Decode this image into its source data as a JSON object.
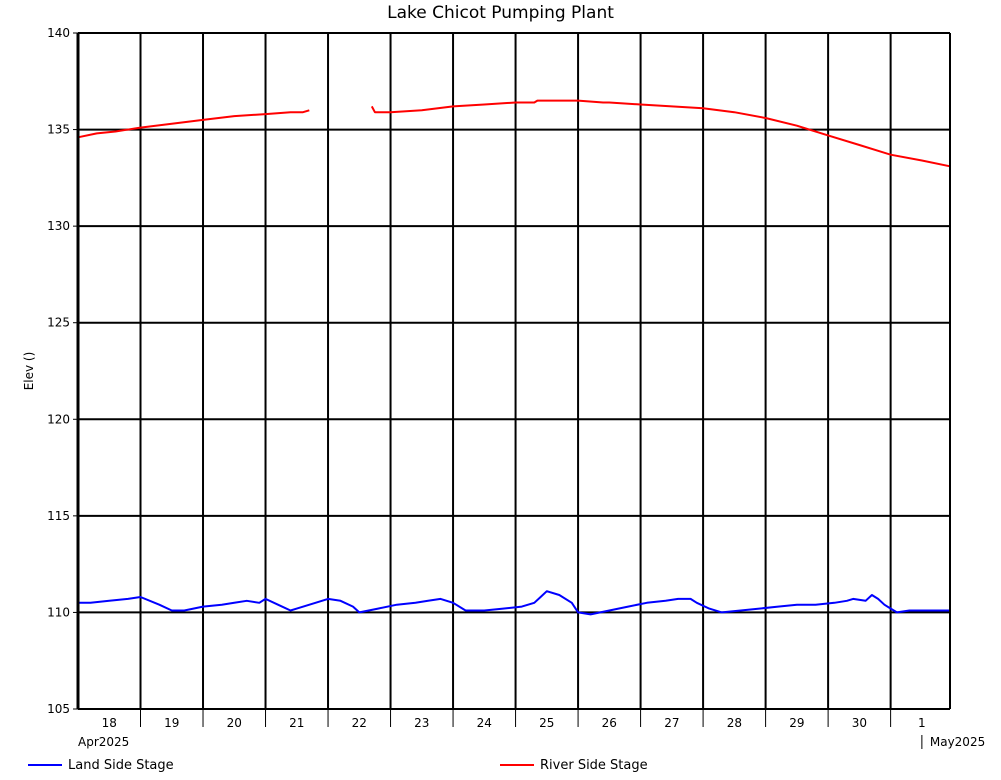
{
  "chart_data": {
    "type": "line",
    "title": "Lake Chicot Pumping Plant",
    "ylabel": "Elev ()",
    "xlabel": "",
    "ylim": [
      105,
      140
    ],
    "yticks": [
      105,
      110,
      115,
      120,
      125,
      130,
      135,
      140
    ],
    "xlim": [
      17.5,
      31.45
    ],
    "day_ticks": [
      {
        "x": 18,
        "label": "18"
      },
      {
        "x": 19,
        "label": "19"
      },
      {
        "x": 20,
        "label": "20"
      },
      {
        "x": 21,
        "label": "21"
      },
      {
        "x": 22,
        "label": "22"
      },
      {
        "x": 23,
        "label": "23"
      },
      {
        "x": 24,
        "label": "24"
      },
      {
        "x": 25,
        "label": "25"
      },
      {
        "x": 26,
        "label": "26"
      },
      {
        "x": 27,
        "label": "27"
      },
      {
        "x": 28,
        "label": "28"
      },
      {
        "x": 29,
        "label": "29"
      },
      {
        "x": 30,
        "label": "30"
      },
      {
        "x": 31,
        "label": "1"
      }
    ],
    "month_labels": [
      {
        "x": 17.5,
        "label": "Apr2025"
      },
      {
        "x": 31,
        "label": "May2025"
      }
    ],
    "grid": true,
    "legend_position": "bottom",
    "series": [
      {
        "name": "Land Side Stage",
        "color": "#0000ff",
        "x": [
          17.5,
          17.7,
          18.0,
          18.3,
          18.5,
          18.8,
          19.0,
          19.2,
          19.5,
          19.8,
          20.0,
          20.2,
          20.4,
          20.5,
          20.7,
          20.9,
          21.0,
          21.3,
          21.5,
          21.7,
          21.9,
          22.0,
          22.3,
          22.6,
          22.9,
          23.1,
          23.3,
          23.5,
          23.7,
          24.0,
          24.3,
          24.6,
          24.8,
          24.9,
          25.0,
          25.2,
          25.4,
          25.5,
          25.7,
          26.0,
          26.3,
          26.6,
          26.9,
          27.1,
          27.3,
          27.4,
          27.6,
          27.8,
          28.1,
          28.4,
          28.7,
          29.0,
          29.3,
          29.6,
          29.8,
          29.9,
          30.1,
          30.2,
          30.3,
          30.4,
          30.6,
          30.8,
          31.0,
          31.2,
          31.45
        ],
        "y": [
          110.5,
          110.5,
          110.6,
          110.7,
          110.8,
          110.4,
          110.1,
          110.1,
          110.3,
          110.4,
          110.5,
          110.6,
          110.5,
          110.7,
          110.4,
          110.1,
          110.2,
          110.5,
          110.7,
          110.6,
          110.3,
          110.0,
          110.2,
          110.4,
          110.5,
          110.6,
          110.7,
          110.5,
          110.1,
          110.1,
          110.2,
          110.3,
          110.5,
          110.8,
          111.1,
          110.9,
          110.5,
          110.0,
          109.9,
          110.1,
          110.3,
          110.5,
          110.6,
          110.7,
          110.7,
          110.5,
          110.2,
          110.0,
          110.1,
          110.2,
          110.3,
          110.4,
          110.4,
          110.5,
          110.6,
          110.7,
          110.6,
          110.9,
          110.7,
          110.4,
          110.0,
          110.1,
          110.1,
          110.1,
          110.1
        ]
      },
      {
        "name": "River Side Stage",
        "color": "#ff0000",
        "x": [
          17.5,
          17.8,
          18.1,
          18.5,
          19.0,
          19.5,
          20.0,
          20.5,
          20.9,
          21.1,
          21.2,
          null,
          22.2,
          22.25,
          22.5,
          23.0,
          23.5,
          24.0,
          24.5,
          24.8,
          24.85,
          25.2,
          25.5,
          25.9,
          26.0,
          26.5,
          27.0,
          27.5,
          28.0,
          28.5,
          29.0,
          29.5,
          30.0,
          30.5,
          31.0,
          31.45
        ],
        "y": [
          134.6,
          134.8,
          134.9,
          135.1,
          135.3,
          135.5,
          135.7,
          135.8,
          135.9,
          135.9,
          136.0,
          null,
          136.2,
          135.9,
          135.9,
          136.0,
          136.2,
          136.3,
          136.4,
          136.4,
          136.5,
          136.5,
          136.5,
          136.4,
          136.4,
          136.3,
          136.2,
          136.1,
          135.9,
          135.6,
          135.2,
          134.7,
          134.2,
          133.7,
          133.4,
          133.1
        ]
      }
    ]
  }
}
